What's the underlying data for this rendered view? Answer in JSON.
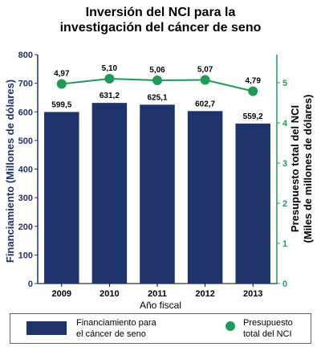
{
  "chart_data": {
    "type": "bar+line",
    "title_lines": [
      "Inversión del NCI para la",
      "investigación del cáncer de seno"
    ],
    "categories": [
      "2009",
      "2010",
      "2011",
      "2012",
      "2013"
    ],
    "xlabel": "Año fiscal",
    "bars": {
      "name": "Financiamiento para el cáncer de seno",
      "values": [
        599.5,
        631.2,
        625.1,
        602.7,
        559.2
      ],
      "labels": [
        "599,5",
        "631,2",
        "625,1",
        "602,7",
        "559,2"
      ],
      "color": "#1f336b"
    },
    "line": {
      "name": "Presupuesto total del NCI",
      "values": [
        4.97,
        5.1,
        5.06,
        5.07,
        4.79
      ],
      "labels": [
        "4,97",
        "5,10",
        "5,06",
        "5,07",
        "4,79"
      ],
      "color": "#1f9b57"
    },
    "y_left": {
      "label": "Financiamiento (Millones de dólares)",
      "ticks": [
        "0",
        "100",
        "200",
        "300",
        "400",
        "500",
        "600",
        "700",
        "800"
      ],
      "ylim": [
        0,
        800
      ],
      "color": "#1f336b"
    },
    "y_right": {
      "label_lines": [
        "Presupuesto total del NCI",
        "(Miles de millones de dólares)"
      ],
      "ticks": [
        "0",
        "1",
        "2",
        "3",
        "4",
        "5"
      ],
      "ylim": [
        0,
        5.7
      ],
      "color": "#1f9b57"
    },
    "grid": false
  },
  "legend": {
    "bar_lines": [
      "Financiamiento para",
      "el cáncer de seno"
    ],
    "line_lines": [
      "Presupuesto",
      "total del NCI"
    ]
  }
}
